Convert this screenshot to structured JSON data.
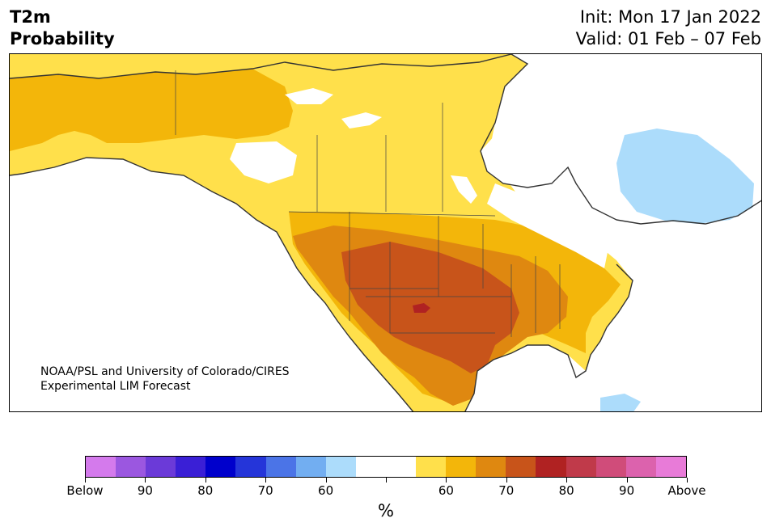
{
  "title": {
    "left_line1": "T2m",
    "left_line2": "Probability",
    "init": "Init: Mon 17 Jan 2022",
    "valid": "Valid: 01 Feb – 07 Feb"
  },
  "credit": {
    "line1": "NOAA/PSL and University of Colorado/CIRES",
    "line2": "Experimental LIM Forecast"
  },
  "colorbar": {
    "colors": [
      "#d47aec",
      "#9b57e0",
      "#6b3ad8",
      "#3a1fd6",
      "#0000cc",
      "#2535d9",
      "#4b74e7",
      "#72aef1",
      "#acdcfb",
      "#ffffff",
      "#ffffff",
      "#ffe04b",
      "#f3b60a",
      "#df8810",
      "#c8541a",
      "#b02222",
      "#c03a4a",
      "#d04c7a",
      "#dc62ad",
      "#e87bd8"
    ],
    "labels": [
      "Below",
      "90",
      "80",
      "70",
      "60",
      "60",
      "70",
      "80",
      "90",
      "Above"
    ],
    "unit": "%"
  },
  "map_colors": {
    "land_base": "#ffe04b",
    "p60": "#f3b60a",
    "p65": "#df8810",
    "p70": "#c8541a",
    "p75": "#b02222",
    "cold": "#acdcfb",
    "neutral": "#ffffff",
    "coast": "#333333"
  }
}
